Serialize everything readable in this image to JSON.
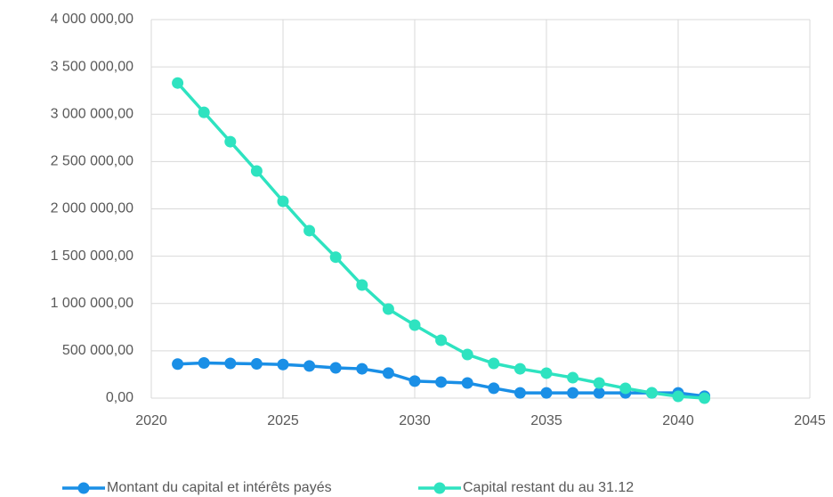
{
  "chart_data": {
    "type": "line",
    "x": [
      2021,
      2022,
      2023,
      2024,
      2025,
      2026,
      2027,
      2028,
      2029,
      2030,
      2031,
      2032,
      2033,
      2034,
      2035,
      2036,
      2037,
      2038,
      2039,
      2040,
      2041
    ],
    "series": [
      {
        "name": "Montant du capital et intérêts payés",
        "color": "#1a8fe6",
        "values": [
          360000,
          372000,
          367000,
          362000,
          355000,
          340000,
          320000,
          310000,
          265000,
          180000,
          170000,
          160000,
          105000,
          55000,
          55000,
          55000,
          55000,
          55000,
          55000,
          55000,
          20000
        ]
      },
      {
        "name": "Capital restant du au 31.12",
        "color": "#2ee3c0",
        "values": [
          3330000,
          3020000,
          2710000,
          2400000,
          2080000,
          1770000,
          1490000,
          1195000,
          941000,
          772000,
          612000,
          461000,
          367000,
          310000,
          264000,
          216000,
          160000,
          104000,
          56000,
          19000,
          0
        ]
      }
    ],
    "xlim": [
      2020,
      2045
    ],
    "xticks": [
      2020,
      2025,
      2030,
      2035,
      2040,
      2045
    ],
    "ylim": [
      0,
      4000000
    ],
    "yticks": [
      {
        "value": 0,
        "label": "0,00"
      },
      {
        "value": 500000,
        "label": "500 000,00"
      },
      {
        "value": 1000000,
        "label": "1 000 000,00"
      },
      {
        "value": 1500000,
        "label": "1 500 000,00"
      },
      {
        "value": 2000000,
        "label": "2 000 000,00"
      },
      {
        "value": 2500000,
        "label": "2 500 000,00"
      },
      {
        "value": 3000000,
        "label": "3 000 000,00"
      },
      {
        "value": 3500000,
        "label": "3 500 000,00"
      },
      {
        "value": 4000000,
        "label": "4 000 000,00"
      }
    ],
    "grid": true,
    "legend": "bottom"
  }
}
